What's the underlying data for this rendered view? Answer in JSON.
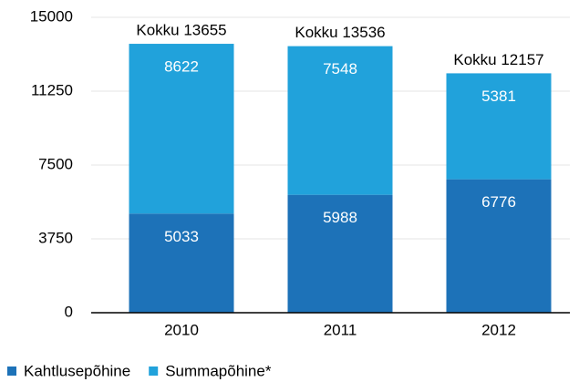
{
  "chart_data": {
    "type": "stacked_bar",
    "categories": [
      "2010",
      "2011",
      "2012"
    ],
    "series": [
      {
        "name": "Kahtlusepõhine",
        "color": "#1d72b8",
        "values": [
          5033,
          5988,
          6776
        ]
      },
      {
        "name": "Summapõhine*",
        "color": "#21a2db",
        "values": [
          8622,
          7548,
          5381
        ]
      }
    ],
    "total_labels": [
      "Kokku 13655",
      "Kokku 13536",
      "Kokku 12157"
    ],
    "ylim": [
      0,
      15000
    ],
    "yticks": [
      0,
      3750,
      7500,
      11250,
      15000
    ],
    "grid": true
  }
}
